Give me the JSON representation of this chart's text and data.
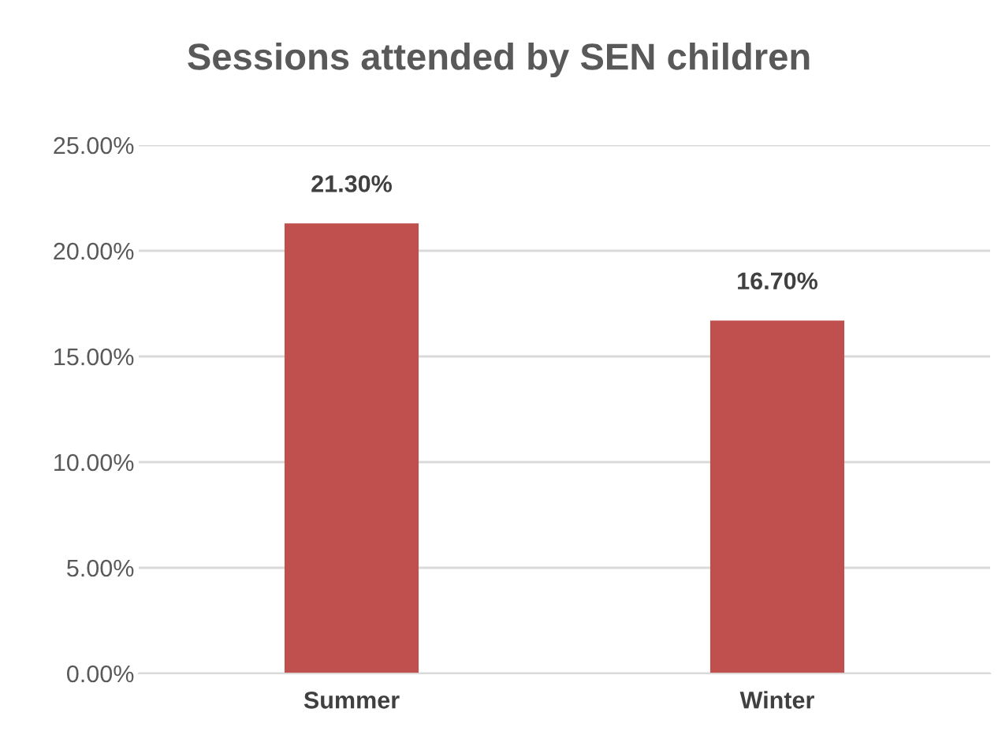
{
  "chart_data": {
    "type": "bar",
    "title": "Sessions attended by SEN children",
    "categories": [
      "Summer",
      "Winter"
    ],
    "series": [
      {
        "color": "#c0504d",
        "values": [
          21.3,
          16.7
        ],
        "value_labels": [
          "21.30%",
          "16.70%"
        ]
      }
    ],
    "ylim": [
      0,
      25
    ],
    "yticks": [
      {
        "value": 0,
        "label": "0.00%"
      },
      {
        "value": 5,
        "label": "5.00%"
      },
      {
        "value": 10,
        "label": "10.00%"
      },
      {
        "value": 15,
        "label": "15.00%"
      },
      {
        "value": 20,
        "label": "20.00%"
      },
      {
        "value": 25,
        "label": "25.00%"
      }
    ],
    "grid": "y"
  }
}
